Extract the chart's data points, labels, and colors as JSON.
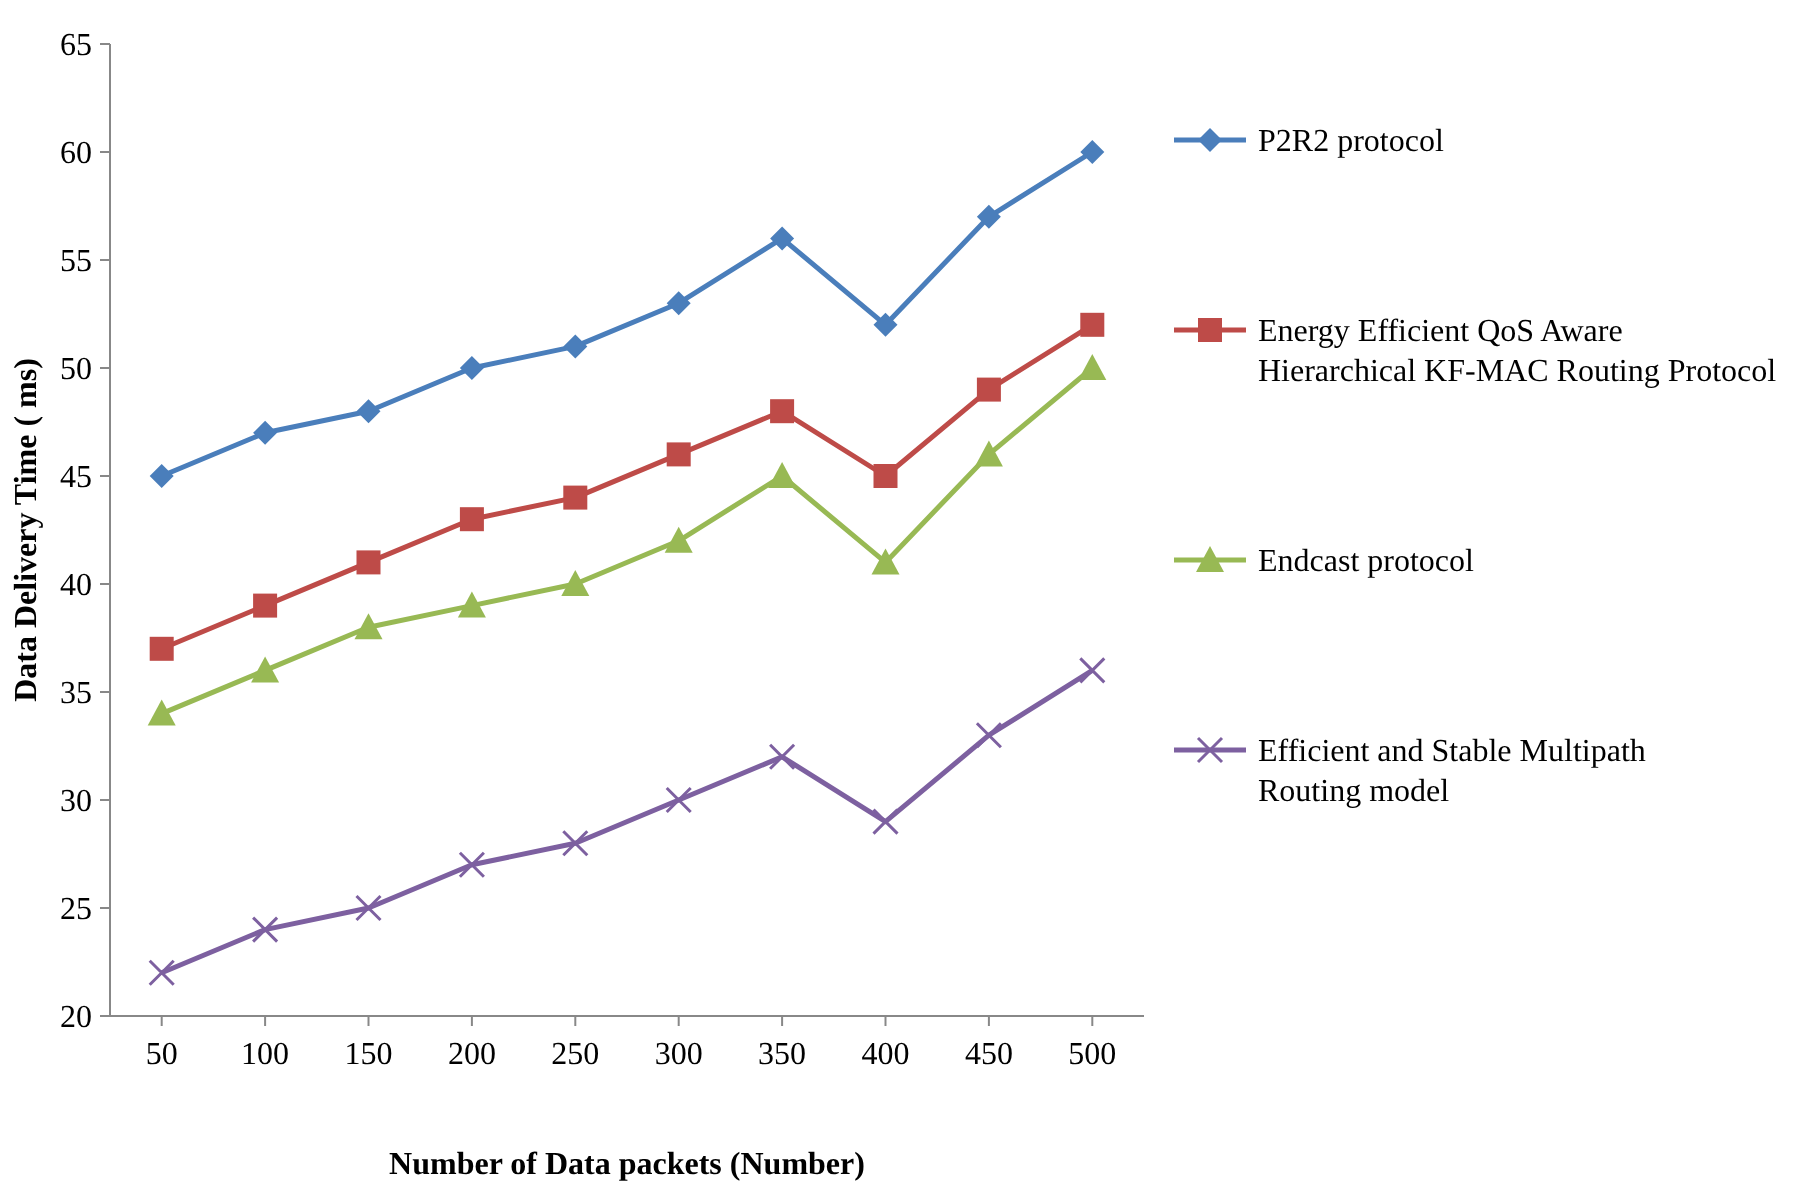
{
  "chart_data": {
    "type": "line",
    "xlabel": "Number of Data packets (Number)",
    "ylabel": "Data Delivery Time ( ms)",
    "categories": [
      "50",
      "100",
      "150",
      "200",
      "250",
      "300",
      "350",
      "400",
      "450",
      "500"
    ],
    "ylim": [
      20,
      65
    ],
    "yticks": [
      20,
      25,
      30,
      35,
      40,
      45,
      50,
      55,
      60,
      65
    ],
    "grid": false,
    "legend": "right",
    "line_style": "solid",
    "series": [
      {
        "name": "P2R2 protocol",
        "color": "#4a7ebb",
        "marker": "diamond",
        "values": [
          45,
          47,
          48,
          50,
          51,
          53,
          56,
          52,
          57,
          60
        ]
      },
      {
        "name": "Energy Efficient QoS Aware Hierarchical KF-MAC Routing Protocol",
        "color": "#be4b48",
        "marker": "square",
        "values": [
          37,
          39,
          41,
          43,
          44,
          46,
          48,
          45,
          49,
          52
        ]
      },
      {
        "name": "Endcast protocol",
        "color": "#98b954",
        "marker": "triangle",
        "values": [
          34,
          36,
          38,
          39,
          40,
          42,
          45,
          41,
          46,
          50
        ]
      },
      {
        "name": "Efficient and Stable Multipath Routing model",
        "color": "#7d60a0",
        "marker": "cross",
        "values": [
          22,
          24,
          25,
          27,
          28,
          30,
          32,
          29,
          33,
          36
        ]
      }
    ]
  }
}
